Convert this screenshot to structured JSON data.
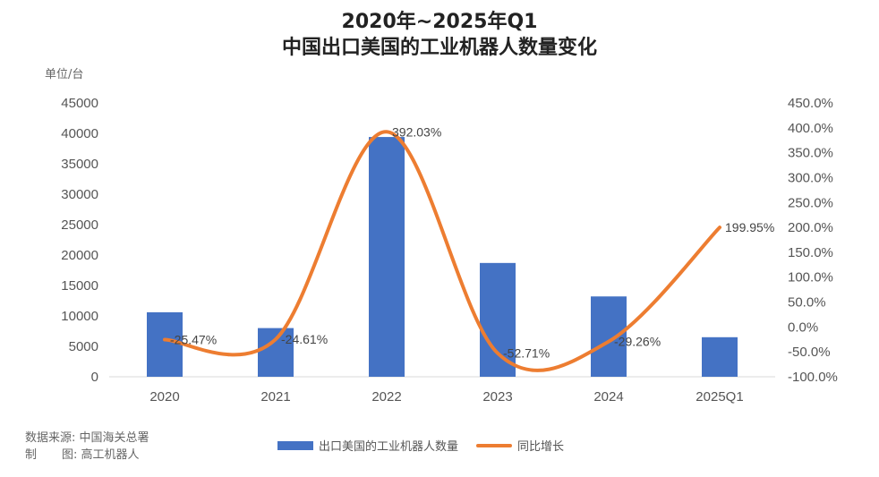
{
  "chart_data": {
    "type": "bar",
    "title_line1": "2020年~2025年Q1",
    "title_line2": "中国出口美国的工业机器人数量变化",
    "unit_label": "单位/台",
    "categories": [
      "2020",
      "2021",
      "2022",
      "2023",
      "2024",
      "2025Q1"
    ],
    "series": [
      {
        "name": "出口美国的工业机器人数量",
        "type": "bar",
        "axis": "left",
        "color": "#4472C4",
        "values": [
          10600,
          8000,
          39400,
          18700,
          13200,
          6500
        ]
      },
      {
        "name": "同比增长",
        "type": "line",
        "axis": "right",
        "color": "#ED7D31",
        "values": [
          -25.47,
          -24.61,
          392.03,
          -52.71,
          -29.26,
          199.95
        ],
        "labels": [
          "-25.47%",
          "-24.61%",
          "392.03%",
          "-52.71%",
          "-29.26%",
          "199.95%"
        ]
      }
    ],
    "y_left": {
      "min": 0,
      "max": 45000,
      "step": 5000,
      "ticks": [
        "0",
        "5000",
        "10000",
        "15000",
        "20000",
        "25000",
        "30000",
        "35000",
        "40000",
        "45000"
      ]
    },
    "y_right": {
      "min": -100,
      "max": 450,
      "step": 50,
      "ticks": [
        "-100.0%",
        "-50.0%",
        "0.0%",
        "50.0%",
        "100.0%",
        "150.0%",
        "200.0%",
        "250.0%",
        "300.0%",
        "350.0%",
        "400.0%",
        "450.0%"
      ]
    },
    "grid": false,
    "legend_position": "bottom"
  },
  "source": {
    "line1_label": "数据来源:",
    "line1_value": "中国海关总署",
    "line2_label_a": "制",
    "line2_label_b": "图:",
    "line2_value": "高工机器人"
  },
  "legend": {
    "bar_label": "出口美国的工业机器人数量",
    "line_label": "同比增长"
  }
}
